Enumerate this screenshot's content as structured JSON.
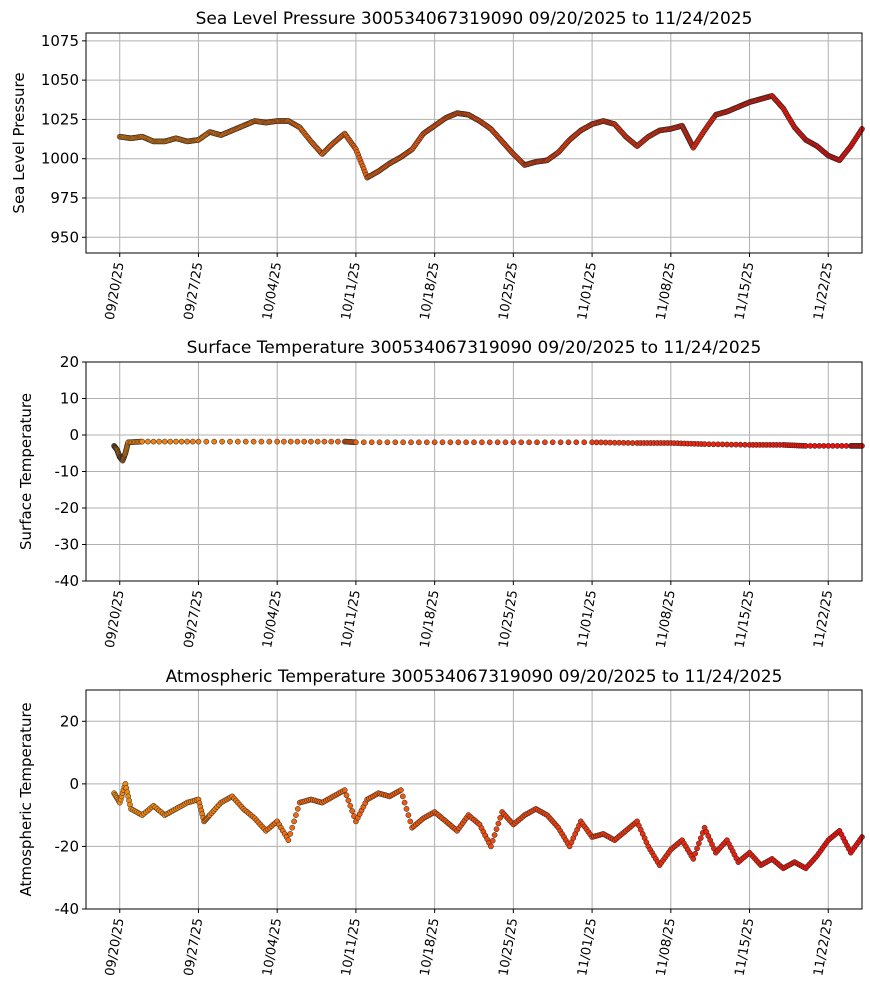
{
  "colors": {
    "early": "#f08a12",
    "late": "#e8120e",
    "marker_edge": "#222222",
    "grid": "#b0b0b0"
  },
  "chart_data": [
    {
      "type": "scatter",
      "title": "Sea Level Pressure 300534067319090  09/20/2025 to 11/24/2025",
      "xlabel": "",
      "ylabel": "Sea Level Pressure",
      "x_range": [
        "2025-09-17",
        "2025-11-25"
      ],
      "ylim": [
        940,
        1080
      ],
      "yticks": [
        950,
        975,
        1000,
        1025,
        1050,
        1075
      ],
      "xticks": [
        "09/20/25",
        "09/27/25",
        "10/04/25",
        "10/11/25",
        "10/18/25",
        "10/25/25",
        "11/01/25",
        "11/08/25",
        "11/15/25",
        "11/22/25"
      ],
      "grid": true,
      "points": [
        [
          "2025-09-20",
          1014
        ],
        [
          "2025-09-21",
          1013
        ],
        [
          "2025-09-22",
          1014
        ],
        [
          "2025-09-23",
          1011
        ],
        [
          "2025-09-24",
          1011
        ],
        [
          "2025-09-25",
          1013
        ],
        [
          "2025-09-26",
          1011
        ],
        [
          "2025-09-27",
          1012
        ],
        [
          "2025-09-28",
          1017
        ],
        [
          "2025-09-29",
          1015
        ],
        [
          "2025-09-30",
          1018
        ],
        [
          "2025-10-01",
          1021
        ],
        [
          "2025-10-02",
          1024
        ],
        [
          "2025-10-03",
          1023
        ],
        [
          "2025-10-04",
          1024
        ],
        [
          "2025-10-05",
          1024
        ],
        [
          "2025-10-06",
          1020
        ],
        [
          "2025-10-07",
          1011
        ],
        [
          "2025-10-08",
          1003
        ],
        [
          "2025-10-09",
          1010
        ],
        [
          "2025-10-10",
          1016
        ],
        [
          "2025-10-11",
          1006
        ],
        [
          "2025-10-12",
          988
        ],
        [
          "2025-10-13",
          992
        ],
        [
          "2025-10-14",
          997
        ],
        [
          "2025-10-15",
          1001
        ],
        [
          "2025-10-16",
          1006
        ],
        [
          "2025-10-17",
          1016
        ],
        [
          "2025-10-18",
          1021
        ],
        [
          "2025-10-19",
          1026
        ],
        [
          "2025-10-20",
          1029
        ],
        [
          "2025-10-21",
          1028
        ],
        [
          "2025-10-22",
          1024
        ],
        [
          "2025-10-23",
          1019
        ],
        [
          "2025-10-24",
          1011
        ],
        [
          "2025-10-25",
          1003
        ],
        [
          "2025-10-26",
          996
        ],
        [
          "2025-10-27",
          998
        ],
        [
          "2025-10-28",
          999
        ],
        [
          "2025-10-29",
          1004
        ],
        [
          "2025-10-30",
          1012
        ],
        [
          "2025-10-31",
          1018
        ],
        [
          "2025-11-01",
          1022
        ],
        [
          "2025-11-02",
          1024
        ],
        [
          "2025-11-03",
          1022
        ],
        [
          "2025-11-04",
          1014
        ],
        [
          "2025-11-05",
          1008
        ],
        [
          "2025-11-06",
          1014
        ],
        [
          "2025-11-07",
          1018
        ],
        [
          "2025-11-08",
          1019
        ],
        [
          "2025-11-09",
          1021
        ],
        [
          "2025-11-09T12",
          1014
        ],
        [
          "2025-11-10",
          1007
        ],
        [
          "2025-11-11",
          1018
        ],
        [
          "2025-11-12",
          1028
        ],
        [
          "2025-11-13",
          1030
        ],
        [
          "2025-11-14",
          1033
        ],
        [
          "2025-11-15",
          1036
        ],
        [
          "2025-11-16",
          1038
        ],
        [
          "2025-11-17",
          1040
        ],
        [
          "2025-11-18",
          1032
        ],
        [
          "2025-11-19",
          1020
        ],
        [
          "2025-11-20",
          1012
        ],
        [
          "2025-11-21",
          1008
        ],
        [
          "2025-11-22",
          1002
        ],
        [
          "2025-11-23",
          999
        ],
        [
          "2025-11-24",
          1008
        ],
        [
          "2025-11-25",
          1019
        ]
      ]
    },
    {
      "type": "scatter",
      "title": "Surface Temperature 300534067319090  09/20/2025 to 11/24/2025",
      "xlabel": "",
      "ylabel": "Surface Temperature",
      "x_range": [
        "2025-09-17",
        "2025-11-25"
      ],
      "ylim": [
        -40,
        20
      ],
      "yticks": [
        -40,
        -30,
        -20,
        -10,
        0,
        10,
        20
      ],
      "xticks": [
        "09/20/25",
        "09/27/25",
        "10/04/25",
        "10/11/25",
        "10/18/25",
        "10/25/25",
        "11/01/25",
        "11/08/25",
        "11/15/25",
        "11/22/25"
      ],
      "grid": true,
      "points": [
        [
          "2025-09-19T12",
          -3
        ],
        [
          "2025-09-19T18",
          -4
        ],
        [
          "2025-09-20",
          -6
        ],
        [
          "2025-09-20T06",
          -7
        ],
        [
          "2025-09-20T12",
          -5
        ],
        [
          "2025-09-20T18",
          -2
        ],
        [
          "2025-09-22",
          -1.8
        ],
        [
          "2025-09-27",
          -1.8
        ],
        [
          "2025-10-04",
          -1.8
        ],
        [
          "2025-10-10",
          -1.8
        ],
        [
          "2025-10-11",
          -2
        ],
        [
          "2025-10-18",
          -2
        ],
        [
          "2025-10-25",
          -2
        ],
        [
          "2025-11-01",
          -2
        ],
        [
          "2025-11-05",
          -2.2
        ],
        [
          "2025-11-08",
          -2.2
        ],
        [
          "2025-11-11",
          -2.5
        ],
        [
          "2025-11-15",
          -2.7
        ],
        [
          "2025-11-18",
          -2.7
        ],
        [
          "2025-11-20",
          -3
        ],
        [
          "2025-11-24",
          -3
        ],
        [
          "2025-11-25",
          -3
        ]
      ]
    },
    {
      "type": "scatter",
      "title": "Atmospheric Temperature 300534067319090  09/20/2025 to 11/24/2025",
      "xlabel": "",
      "ylabel": "Atmospheric Temperature",
      "x_range": [
        "2025-09-17",
        "2025-11-25"
      ],
      "ylim": [
        -40,
        30
      ],
      "yticks": [
        -40,
        -20,
        0,
        20
      ],
      "xticks": [
        "09/20/25",
        "09/27/25",
        "10/04/25",
        "10/11/25",
        "10/18/25",
        "10/25/25",
        "11/01/25",
        "11/08/25",
        "11/15/25",
        "11/22/25"
      ],
      "grid": true,
      "points": [
        [
          "2025-09-19T12",
          -3
        ],
        [
          "2025-09-20",
          -6
        ],
        [
          "2025-09-20T12",
          0
        ],
        [
          "2025-09-21",
          -8
        ],
        [
          "2025-09-22",
          -10
        ],
        [
          "2025-09-23",
          -7
        ],
        [
          "2025-09-24",
          -10
        ],
        [
          "2025-09-25",
          -8
        ],
        [
          "2025-09-26",
          -6
        ],
        [
          "2025-09-27",
          -5
        ],
        [
          "2025-09-27T12",
          -12
        ],
        [
          "2025-09-28",
          -10
        ],
        [
          "2025-09-29",
          -6
        ],
        [
          "2025-09-30",
          -4
        ],
        [
          "2025-10-01",
          -8
        ],
        [
          "2025-10-02",
          -11
        ],
        [
          "2025-10-03",
          -15
        ],
        [
          "2025-10-04",
          -12
        ],
        [
          "2025-10-05",
          -18
        ],
        [
          "2025-10-06",
          -6
        ],
        [
          "2025-10-07",
          -5
        ],
        [
          "2025-10-08",
          -6
        ],
        [
          "2025-10-09",
          -4
        ],
        [
          "2025-10-10",
          -2
        ],
        [
          "2025-10-11",
          -12
        ],
        [
          "2025-10-12",
          -5
        ],
        [
          "2025-10-13",
          -3
        ],
        [
          "2025-10-14",
          -4
        ],
        [
          "2025-10-15",
          -2
        ],
        [
          "2025-10-16",
          -14
        ],
        [
          "2025-10-17",
          -11
        ],
        [
          "2025-10-18",
          -9
        ],
        [
          "2025-10-19",
          -12
        ],
        [
          "2025-10-20",
          -15
        ],
        [
          "2025-10-21",
          -10
        ],
        [
          "2025-10-22",
          -13
        ],
        [
          "2025-10-23",
          -20
        ],
        [
          "2025-10-24",
          -9
        ],
        [
          "2025-10-25",
          -13
        ],
        [
          "2025-10-26",
          -10
        ],
        [
          "2025-10-27",
          -8
        ],
        [
          "2025-10-28",
          -10
        ],
        [
          "2025-10-29",
          -14
        ],
        [
          "2025-10-30",
          -20
        ],
        [
          "2025-10-31",
          -12
        ],
        [
          "2025-11-01",
          -17
        ],
        [
          "2025-11-02",
          -16
        ],
        [
          "2025-11-03",
          -18
        ],
        [
          "2025-11-04",
          -15
        ],
        [
          "2025-11-05",
          -12
        ],
        [
          "2025-11-06",
          -20
        ],
        [
          "2025-11-07",
          -26
        ],
        [
          "2025-11-08",
          -21
        ],
        [
          "2025-11-09",
          -18
        ],
        [
          "2025-11-10",
          -24
        ],
        [
          "2025-11-11",
          -14
        ],
        [
          "2025-11-12",
          -22
        ],
        [
          "2025-11-13",
          -18
        ],
        [
          "2025-11-14",
          -25
        ],
        [
          "2025-11-15",
          -22
        ],
        [
          "2025-11-16",
          -26
        ],
        [
          "2025-11-17",
          -24
        ],
        [
          "2025-11-18",
          -27
        ],
        [
          "2025-11-19",
          -25
        ],
        [
          "2025-11-20",
          -27
        ],
        [
          "2025-11-21",
          -23
        ],
        [
          "2025-11-22",
          -18
        ],
        [
          "2025-11-23",
          -15
        ],
        [
          "2025-11-24",
          -22
        ],
        [
          "2025-11-25",
          -17
        ]
      ]
    }
  ]
}
